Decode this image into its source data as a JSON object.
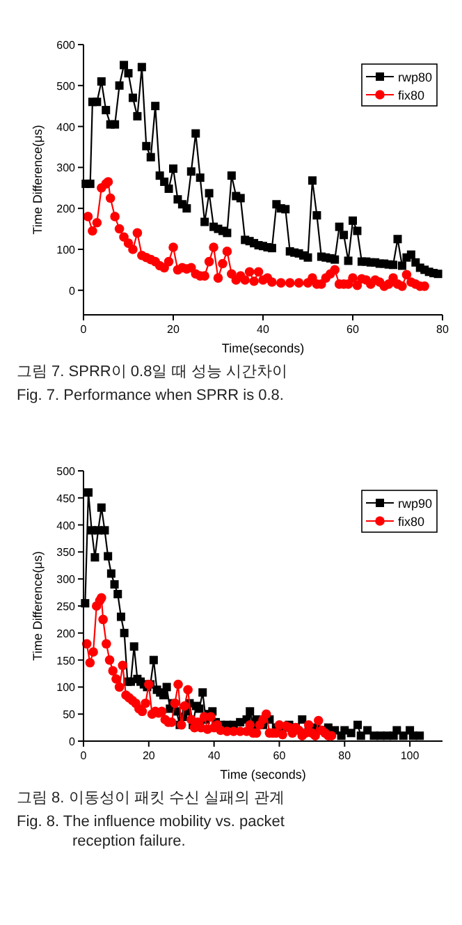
{
  "chart_data": [
    {
      "type": "line",
      "xlabel": "Time(seconds)",
      "ylabel": "Time Difference(μs)",
      "xlim": [
        0,
        80
      ],
      "xticks": [
        0,
        20,
        40,
        60,
        80
      ],
      "ylim": [
        -60,
        600
      ],
      "yticks": [
        0,
        100,
        200,
        300,
        400,
        500,
        600
      ],
      "legend": "top right",
      "grid": false,
      "annotations": [
        "그림 7. SPRR이 0.8일 때 성능 시간차이",
        "Fig. 7. Performance when SPRR is 0.8."
      ],
      "series": [
        {
          "name": "rwp80",
          "color": "#000000",
          "marker": "square",
          "x": [
            0.5,
            1.5,
            2,
            3,
            4,
            5,
            6,
            7,
            8,
            9,
            10,
            11,
            12,
            13,
            14,
            15,
            16,
            17,
            18,
            19,
            20,
            21,
            22,
            23,
            24,
            25,
            26,
            27,
            28,
            29,
            30,
            31,
            32,
            33,
            34,
            35,
            36,
            37,
            38,
            39,
            40,
            41,
            42,
            43,
            44,
            45,
            46,
            47,
            48,
            49,
            50,
            51,
            52,
            53,
            54,
            55,
            56,
            57,
            58,
            59,
            60,
            61,
            62,
            63,
            64,
            65,
            66,
            67,
            68,
            69,
            70,
            71,
            72,
            73,
            74,
            75,
            76,
            77,
            78,
            79
          ],
          "values": [
            260,
            260,
            460,
            460,
            510,
            440,
            405,
            405,
            500,
            550,
            530,
            470,
            425,
            545,
            352,
            325,
            450,
            280,
            265,
            248,
            297,
            222,
            210,
            200,
            290,
            383,
            275,
            167,
            237,
            155,
            150,
            145,
            140,
            280,
            230,
            225,
            123,
            120,
            115,
            110,
            108,
            105,
            103,
            210,
            200,
            198,
            95,
            92,
            90,
            85,
            80,
            268,
            183,
            82,
            80,
            78,
            75,
            155,
            135,
            72,
            170,
            145,
            70,
            70,
            68,
            68,
            65,
            65,
            63,
            62,
            125,
            60,
            80,
            87,
            68,
            55,
            50,
            45,
            42,
            40
          ]
        },
        {
          "name": "fix80",
          "color": "#ff0000",
          "marker": "circle",
          "x": [
            1,
            2,
            3,
            4,
            5,
            5.5,
            6,
            7,
            8,
            9,
            10,
            11,
            12,
            13,
            14,
            15,
            16,
            17,
            18,
            19,
            20,
            21,
            22,
            23,
            24,
            25,
            26,
            27,
            28,
            29,
            30,
            31,
            32,
            33,
            34,
            35,
            36,
            37,
            38,
            39,
            40,
            41,
            42,
            44,
            46,
            48,
            50,
            51,
            52,
            53,
            54,
            55,
            56,
            57,
            58,
            59,
            60,
            61,
            62,
            63,
            64,
            65,
            66,
            67,
            68,
            69,
            70,
            71,
            72,
            73,
            74,
            75,
            76
          ],
          "values": [
            180,
            145,
            165,
            250,
            260,
            265,
            225,
            180,
            150,
            130,
            115,
            100,
            140,
            85,
            80,
            75,
            70,
            60,
            55,
            70,
            105,
            50,
            55,
            52,
            55,
            40,
            35,
            35,
            70,
            105,
            30,
            65,
            95,
            40,
            25,
            35,
            25,
            45,
            22,
            45,
            25,
            30,
            20,
            18,
            18,
            18,
            18,
            30,
            15,
            15,
            30,
            40,
            50,
            15,
            15,
            15,
            30,
            12,
            28,
            25,
            15,
            25,
            20,
            10,
            15,
            30,
            15,
            10,
            38,
            20,
            15,
            10,
            10
          ]
        }
      ]
    },
    {
      "type": "line",
      "xlabel": "Time (seconds)",
      "ylabel": "Time Difference(μs)",
      "xlim": [
        0,
        110
      ],
      "xticks": [
        0,
        20,
        40,
        60,
        80,
        100
      ],
      "ylim": [
        0,
        500
      ],
      "yticks": [
        0,
        50,
        100,
        150,
        200,
        250,
        300,
        350,
        400,
        450,
        500
      ],
      "legend": "top right",
      "grid": false,
      "annotations": [
        "그림 8. 이동성이 패킷 수신 실패의 관계",
        "Fig. 8. The influence mobility vs. packet reception failure."
      ],
      "series": [
        {
          "name": "rwp90",
          "color": "#000000",
          "marker": "square",
          "x": [
            0.5,
            1.5,
            2.5,
            3.5,
            4.5,
            5.5,
            6.5,
            7.5,
            8.5,
            9.5,
            10.5,
            11.5,
            12.5,
            13.5,
            14.5,
            15.5,
            16.5,
            17.5,
            18.5,
            19.5,
            20.5,
            21.5,
            22.5,
            23.5,
            24.5,
            25.5,
            26.5,
            27.5,
            28.5,
            29.5,
            30.5,
            31.5,
            32.5,
            33.5,
            34.5,
            35.5,
            36.5,
            37.5,
            38.5,
            39.5,
            40.5,
            42,
            44,
            46,
            48,
            50,
            51,
            52,
            53,
            55,
            57,
            59,
            61,
            63,
            65,
            67,
            69,
            71,
            73,
            75,
            77,
            79,
            80,
            82,
            84,
            85,
            87,
            89,
            91,
            93,
            95,
            96,
            98,
            100,
            101,
            103
          ],
          "values": [
            255,
            460,
            390,
            340,
            390,
            432,
            390,
            342,
            310,
            290,
            272,
            230,
            200,
            110,
            110,
            175,
            115,
            110,
            105,
            100,
            105,
            150,
            95,
            90,
            85,
            100,
            60,
            70,
            55,
            30,
            45,
            55,
            70,
            30,
            65,
            60,
            90,
            40,
            50,
            55,
            35,
            30,
            30,
            30,
            35,
            40,
            55,
            30,
            40,
            30,
            40,
            25,
            25,
            30,
            25,
            40,
            25,
            25,
            20,
            25,
            20,
            10,
            20,
            15,
            30,
            10,
            20,
            10,
            10,
            10,
            10,
            20,
            10,
            20,
            10,
            10
          ]
        },
        {
          "name": "fix80",
          "color": "#ff0000",
          "marker": "circle",
          "x": [
            1,
            2,
            3,
            4,
            5,
            5.5,
            6,
            7,
            8,
            9,
            10,
            11,
            12,
            13,
            14,
            15,
            16,
            17,
            18,
            19,
            20,
            21,
            22,
            23,
            24,
            25,
            26,
            27,
            28,
            29,
            30,
            31,
            32,
            33,
            34,
            35,
            36,
            37,
            38,
            39,
            40,
            41,
            42,
            44,
            46,
            48,
            50,
            51,
            52,
            53,
            54,
            55,
            56,
            57,
            58,
            59,
            60,
            61,
            62,
            63,
            64,
            65,
            66,
            67,
            68,
            69,
            70,
            71,
            72,
            73,
            74,
            75,
            76
          ],
          "values": [
            180,
            145,
            165,
            250,
            260,
            265,
            225,
            180,
            150,
            130,
            115,
            100,
            140,
            85,
            80,
            75,
            70,
            60,
            55,
            70,
            105,
            50,
            55,
            52,
            55,
            40,
            35,
            35,
            70,
            105,
            30,
            65,
            95,
            40,
            25,
            35,
            25,
            45,
            22,
            45,
            25,
            30,
            20,
            18,
            18,
            18,
            18,
            30,
            15,
            15,
            30,
            40,
            50,
            15,
            15,
            15,
            30,
            12,
            28,
            25,
            15,
            25,
            20,
            10,
            15,
            30,
            15,
            10,
            38,
            20,
            15,
            10,
            10
          ]
        }
      ]
    }
  ]
}
